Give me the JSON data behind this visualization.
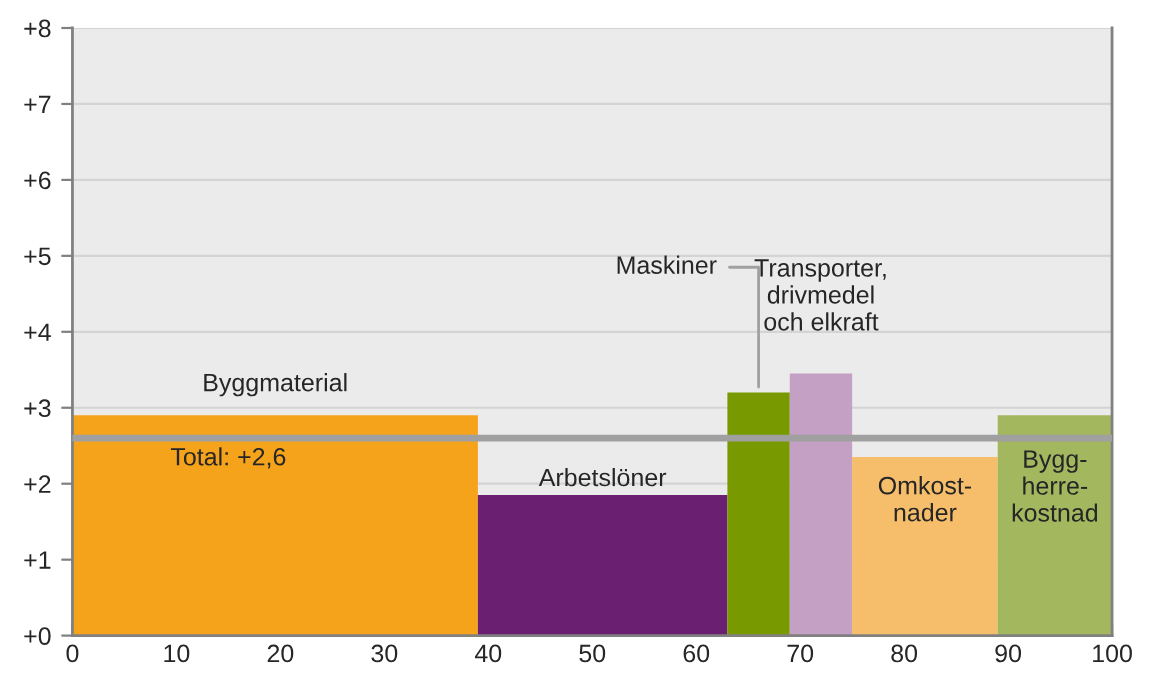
{
  "chart_data": {
    "type": "histogram",
    "bins": [
      0,
      39,
      63,
      69,
      75,
      89,
      100
    ],
    "values": [
      2.9,
      1.85,
      3.2,
      3.45,
      2.35,
      2.9
    ],
    "colors": [
      "#f4a31b",
      "#6a1f70",
      "#789a00",
      "#c4a0c4",
      "#f6be6a",
      "#a3b75f"
    ],
    "xlim": [
      0,
      100
    ],
    "xticks": [
      0,
      10,
      20,
      30,
      40,
      50,
      60,
      70,
      80,
      90,
      100
    ],
    "ylim": [
      0,
      8
    ],
    "yticks": [
      {
        "value": 0,
        "label": "+0"
      },
      {
        "value": 1,
        "label": "+1"
      },
      {
        "value": 2,
        "label": "+2"
      },
      {
        "value": 3,
        "label": "+3"
      },
      {
        "value": 4,
        "label": "+4"
      },
      {
        "value": 5,
        "label": "+5"
      },
      {
        "value": 6,
        "label": "+6"
      },
      {
        "value": 7,
        "label": "+7"
      },
      {
        "value": 8,
        "label": "+8"
      }
    ],
    "grid": "y",
    "ref_lines": [
      {
        "axis": "y",
        "value": 2.6,
        "label": "Total: +2,6",
        "color": "#a0a0a0"
      }
    ],
    "annotations": [
      {
        "text": "Byggmaterial",
        "x": 19.5,
        "y": 2.9
      },
      {
        "text": "Arbetslöner",
        "x": 51,
        "y": 1.85
      },
      {
        "text": "Maskiner",
        "x": 66,
        "y": 3.2
      },
      {
        "text": "Transporter,\ndrivmedel\noch elkraft",
        "x": 72,
        "y": 3.45
      },
      {
        "text": "Omkost-\nnader",
        "x": 82,
        "y": 2.35
      },
      {
        "text": "Bygg-\nherre-\nkostnad",
        "x": 94.5,
        "y": 2.9
      }
    ]
  }
}
